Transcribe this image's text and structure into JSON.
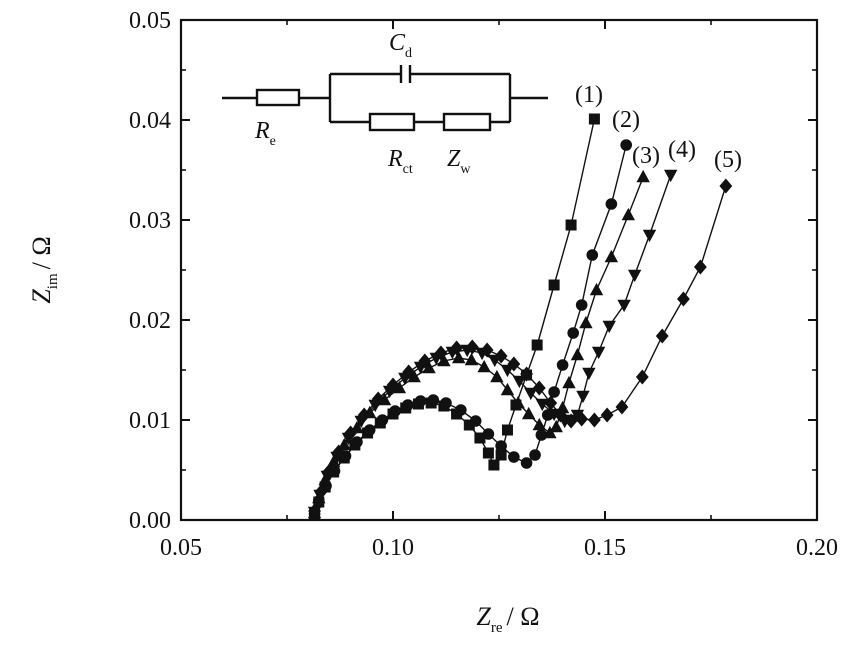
{
  "chart_data": {
    "type": "scatter",
    "xlabel": {
      "main": "Z",
      "sub": "re",
      "unit": "/ Ω"
    },
    "ylabel": {
      "main": "Z",
      "sub": "im",
      "unit": "/ Ω"
    },
    "xlim": [
      0.05,
      0.2
    ],
    "ylim": [
      0.0,
      0.05
    ],
    "xticks": [
      "0.05",
      "0.10",
      "0.15",
      "0.20"
    ],
    "yticks": [
      "0.00",
      "0.01",
      "0.02",
      "0.03",
      "0.04",
      "0.05"
    ],
    "grid": false,
    "inset_circuit": {
      "elements": [
        {
          "id": "re",
          "main": "R",
          "sub": "e"
        },
        {
          "id": "dl",
          "main": "C",
          "sub": "d"
        },
        {
          "id": "rct",
          "main": "R",
          "sub": "ct"
        },
        {
          "id": "zw",
          "main": "Z",
          "sub": "w"
        }
      ]
    },
    "series": [
      {
        "name": "(1)",
        "marker": "square",
        "points": [
          [
            0.0815,
            0.0005
          ],
          [
            0.0825,
            0.0018
          ],
          [
            0.084,
            0.0033
          ],
          [
            0.086,
            0.0048
          ],
          [
            0.0885,
            0.0062
          ],
          [
            0.091,
            0.0075
          ],
          [
            0.094,
            0.0087
          ],
          [
            0.097,
            0.0097
          ],
          [
            0.1,
            0.0106
          ],
          [
            0.103,
            0.0112
          ],
          [
            0.106,
            0.0116
          ],
          [
            0.109,
            0.0117
          ],
          [
            0.112,
            0.0114
          ],
          [
            0.115,
            0.0106
          ],
          [
            0.118,
            0.0095
          ],
          [
            0.1205,
            0.0082
          ],
          [
            0.1225,
            0.0067
          ],
          [
            0.1238,
            0.0055
          ],
          [
            0.1255,
            0.0065
          ],
          [
            0.127,
            0.009
          ],
          [
            0.129,
            0.0115
          ],
          [
            0.1315,
            0.0145
          ],
          [
            0.134,
            0.0175
          ],
          [
            0.138,
            0.0235
          ],
          [
            0.142,
            0.0295
          ],
          [
            0.1475,
            0.0401
          ]
        ]
      },
      {
        "name": "(2)",
        "marker": "circle",
        "points": [
          [
            0.0815,
            0.0006
          ],
          [
            0.0825,
            0.0019
          ],
          [
            0.0842,
            0.0034
          ],
          [
            0.0862,
            0.0049
          ],
          [
            0.0888,
            0.0064
          ],
          [
            0.0915,
            0.0078
          ],
          [
            0.0945,
            0.009
          ],
          [
            0.0975,
            0.01
          ],
          [
            0.1005,
            0.0109
          ],
          [
            0.1035,
            0.0115
          ],
          [
            0.1065,
            0.0119
          ],
          [
            0.1095,
            0.012
          ],
          [
            0.1125,
            0.0117
          ],
          [
            0.116,
            0.011
          ],
          [
            0.1195,
            0.0099
          ],
          [
            0.1225,
            0.0086
          ],
          [
            0.1255,
            0.0074
          ],
          [
            0.1285,
            0.0063
          ],
          [
            0.1315,
            0.0057
          ],
          [
            0.1335,
            0.0065
          ],
          [
            0.135,
            0.0085
          ],
          [
            0.1365,
            0.0105
          ],
          [
            0.138,
            0.0128
          ],
          [
            0.14,
            0.0155
          ],
          [
            0.1425,
            0.0187
          ],
          [
            0.1445,
            0.0215
          ],
          [
            0.147,
            0.0265
          ],
          [
            0.1515,
            0.0316
          ],
          [
            0.155,
            0.0375
          ]
        ]
      },
      {
        "name": "(3)",
        "marker": "triangle-up",
        "points": [
          [
            0.0815,
            0.0007
          ],
          [
            0.0825,
            0.0022
          ],
          [
            0.084,
            0.004
          ],
          [
            0.086,
            0.0058
          ],
          [
            0.0885,
            0.0075
          ],
          [
            0.0915,
            0.0092
          ],
          [
            0.0945,
            0.0107
          ],
          [
            0.098,
            0.012
          ],
          [
            0.1015,
            0.0132
          ],
          [
            0.105,
            0.0143
          ],
          [
            0.1085,
            0.0152
          ],
          [
            0.112,
            0.0159
          ],
          [
            0.1155,
            0.0162
          ],
          [
            0.1185,
            0.016
          ],
          [
            0.1215,
            0.0153
          ],
          [
            0.1245,
            0.0143
          ],
          [
            0.127,
            0.013
          ],
          [
            0.1295,
            0.0117
          ],
          [
            0.132,
            0.0106
          ],
          [
            0.1345,
            0.0095
          ],
          [
            0.137,
            0.0087
          ],
          [
            0.1385,
            0.0093
          ],
          [
            0.14,
            0.0112
          ],
          [
            0.1415,
            0.0137
          ],
          [
            0.1435,
            0.0165
          ],
          [
            0.1455,
            0.0197
          ],
          [
            0.148,
            0.023
          ],
          [
            0.1515,
            0.0263
          ],
          [
            0.1555,
            0.0305
          ],
          [
            0.159,
            0.0343
          ]
        ]
      },
      {
        "name": "(4)",
        "marker": "triangle-down",
        "points": [
          [
            0.0815,
            0.0008
          ],
          [
            0.0828,
            0.0025
          ],
          [
            0.0845,
            0.0044
          ],
          [
            0.0868,
            0.0063
          ],
          [
            0.0895,
            0.0082
          ],
          [
            0.0925,
            0.0099
          ],
          [
            0.0958,
            0.0115
          ],
          [
            0.0992,
            0.0129
          ],
          [
            0.1028,
            0.0142
          ],
          [
            0.1065,
            0.0153
          ],
          [
            0.1102,
            0.0162
          ],
          [
            0.114,
            0.0168
          ],
          [
            0.1175,
            0.017
          ],
          [
            0.121,
            0.0167
          ],
          [
            0.124,
            0.016
          ],
          [
            0.127,
            0.015
          ],
          [
            0.1298,
            0.0139
          ],
          [
            0.1325,
            0.0127
          ],
          [
            0.1352,
            0.0116
          ],
          [
            0.138,
            0.0106
          ],
          [
            0.1405,
            0.0099
          ],
          [
            0.142,
            0.01
          ],
          [
            0.1435,
            0.0105
          ],
          [
            0.1448,
            0.0124
          ],
          [
            0.1462,
            0.0147
          ],
          [
            0.1485,
            0.0168
          ],
          [
            0.151,
            0.0194
          ],
          [
            0.1545,
            0.0215
          ],
          [
            0.157,
            0.0245
          ],
          [
            0.1605,
            0.0285
          ],
          [
            0.1655,
            0.0345
          ]
        ]
      },
      {
        "name": "(5)",
        "marker": "diamond",
        "points": [
          [
            0.0815,
            0.0009
          ],
          [
            0.083,
            0.0028
          ],
          [
            0.0848,
            0.0048
          ],
          [
            0.0872,
            0.0068
          ],
          [
            0.09,
            0.0087
          ],
          [
            0.0932,
            0.0105
          ],
          [
            0.0965,
            0.0121
          ],
          [
            0.1,
            0.0135
          ],
          [
            0.1037,
            0.0148
          ],
          [
            0.1075,
            0.0159
          ],
          [
            0.1113,
            0.0167
          ],
          [
            0.115,
            0.0172
          ],
          [
            0.1187,
            0.0173
          ],
          [
            0.1222,
            0.017
          ],
          [
            0.1255,
            0.0164
          ],
          [
            0.1285,
            0.0156
          ],
          [
            0.1315,
            0.0146
          ],
          [
            0.1345,
            0.0132
          ],
          [
            0.1372,
            0.0117
          ],
          [
            0.1395,
            0.0105
          ],
          [
            0.142,
            0.0099
          ],
          [
            0.1445,
            0.0101
          ],
          [
            0.1475,
            0.01
          ],
          [
            0.1505,
            0.0105
          ],
          [
            0.154,
            0.0113
          ],
          [
            0.1588,
            0.0143
          ],
          [
            0.1635,
            0.0184
          ],
          [
            0.1685,
            0.0221
          ],
          [
            0.1725,
            0.0253
          ],
          [
            0.1785,
            0.0334
          ]
        ]
      }
    ]
  }
}
